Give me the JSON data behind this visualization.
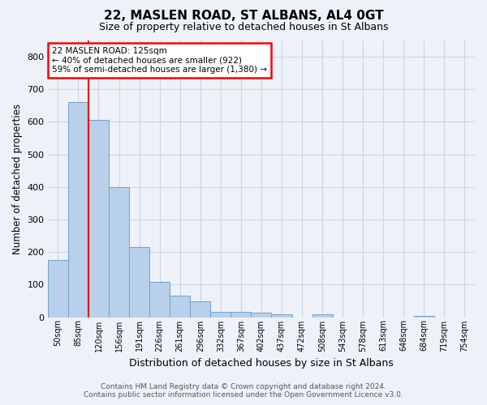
{
  "title": "22, MASLEN ROAD, ST ALBANS, AL4 0GT",
  "subtitle": "Size of property relative to detached houses in St Albans",
  "xlabel": "Distribution of detached houses by size in St Albans",
  "ylabel": "Number of detached properties",
  "bar_values": [
    175,
    660,
    605,
    400,
    215,
    108,
    65,
    48,
    17,
    16,
    13,
    8,
    0,
    8,
    0,
    0,
    0,
    0,
    5,
    0,
    0
  ],
  "bin_labels": [
    "50sqm",
    "85sqm",
    "120sqm",
    "156sqm",
    "191sqm",
    "226sqm",
    "261sqm",
    "296sqm",
    "332sqm",
    "367sqm",
    "402sqm",
    "437sqm",
    "472sqm",
    "508sqm",
    "543sqm",
    "578sqm",
    "613sqm",
    "648sqm",
    "684sqm",
    "719sqm",
    "754sqm"
  ],
  "bar_color": "#b8d0ea",
  "bar_edgecolor": "#6fa0c8",
  "grid_color": "#c8d4e8",
  "background_color": "#eef2f8",
  "property_line_x": 1.5,
  "annotation_line1": "22 MASLEN ROAD: 125sqm",
  "annotation_line2": "← 40% of detached houses are smaller (922)",
  "annotation_line3": "59% of semi-detached houses are larger (1,380) →",
  "annotation_box_facecolor": "white",
  "annotation_box_edgecolor": "red",
  "red_line_color": "red",
  "ylim": [
    0,
    850
  ],
  "yticks": [
    0,
    100,
    200,
    300,
    400,
    500,
    600,
    700,
    800
  ],
  "footer_line1": "Contains HM Land Registry data © Crown copyright and database right 2024.",
  "footer_line2": "Contains public sector information licensed under the Open Government Licence v3.0."
}
